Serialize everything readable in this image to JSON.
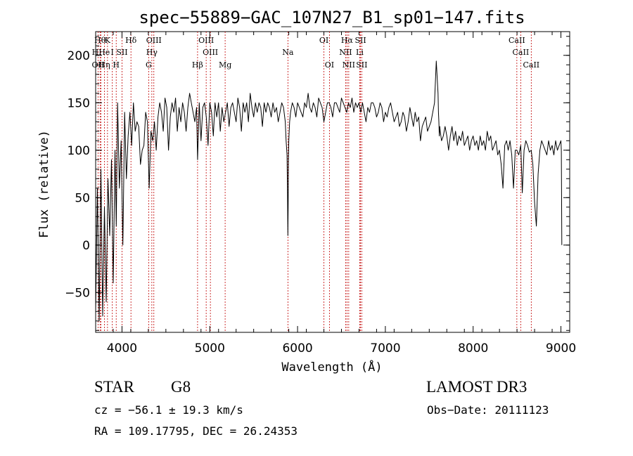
{
  "chart_data": {
    "type": "line",
    "title": "spec−55889−GAC_107N27_B1_sp01−147.fits",
    "xlabel": "Wavelength (Å)",
    "ylabel": "Flux (relative)",
    "xlim": [
      3700,
      9100
    ],
    "ylim": [
      -92,
      225
    ],
    "x_ticks": [
      {
        "v": 4000,
        "label": "4000"
      },
      {
        "v": 5000,
        "label": "5000"
      },
      {
        "v": 6000,
        "label": "6000"
      },
      {
        "v": 7000,
        "label": "7000"
      },
      {
        "v": 8000,
        "label": "8000"
      },
      {
        "v": 9000,
        "label": "9000"
      }
    ],
    "y_ticks": [
      {
        "v": -50,
        "label": "−50"
      },
      {
        "v": 0,
        "label": "0"
      },
      {
        "v": 50,
        "label": "50"
      },
      {
        "v": 100,
        "label": "100"
      },
      {
        "v": 150,
        "label": "150"
      },
      {
        "v": 200,
        "label": "200"
      }
    ],
    "series": [
      {
        "name": "flux",
        "x": [
          3700,
          3720,
          3740,
          3760,
          3780,
          3800,
          3820,
          3840,
          3860,
          3880,
          3900,
          3920,
          3935,
          3950,
          3970,
          3990,
          4010,
          4030,
          4050,
          4070,
          4090,
          4110,
          4130,
          4150,
          4170,
          4190,
          4210,
          4230,
          4250,
          4270,
          4290,
          4310,
          4330,
          4350,
          4370,
          4390,
          4410,
          4430,
          4450,
          4470,
          4490,
          4510,
          4530,
          4550,
          4570,
          4590,
          4610,
          4630,
          4650,
          4670,
          4690,
          4710,
          4730,
          4750,
          4770,
          4790,
          4810,
          4830,
          4850,
          4861,
          4880,
          4900,
          4920,
          4940,
          4960,
          4980,
          5000,
          5020,
          5040,
          5060,
          5080,
          5100,
          5120,
          5140,
          5160,
          5180,
          5200,
          5220,
          5240,
          5260,
          5280,
          5300,
          5320,
          5340,
          5360,
          5380,
          5400,
          5420,
          5440,
          5460,
          5480,
          5500,
          5520,
          5540,
          5560,
          5580,
          5600,
          5620,
          5640,
          5660,
          5680,
          5700,
          5720,
          5740,
          5760,
          5780,
          5800,
          5820,
          5840,
          5860,
          5870,
          5880,
          5885,
          5890,
          5893,
          5896,
          5900,
          5910,
          5920,
          5940,
          5960,
          5980,
          6000,
          6020,
          6040,
          6060,
          6080,
          6100,
          6120,
          6140,
          6160,
          6180,
          6200,
          6220,
          6240,
          6260,
          6280,
          6300,
          6320,
          6340,
          6360,
          6380,
          6400,
          6420,
          6440,
          6460,
          6480,
          6500,
          6520,
          6540,
          6560,
          6580,
          6600,
          6620,
          6640,
          6660,
          6680,
          6700,
          6720,
          6740,
          6760,
          6780,
          6800,
          6820,
          6840,
          6860,
          6880,
          6900,
          6920,
          6940,
          6960,
          6980,
          7000,
          7020,
          7040,
          7060,
          7080,
          7100,
          7120,
          7140,
          7160,
          7180,
          7200,
          7220,
          7240,
          7260,
          7280,
          7300,
          7320,
          7340,
          7360,
          7380,
          7400,
          7420,
          7440,
          7460,
          7480,
          7500,
          7520,
          7540,
          7560,
          7580,
          7600,
          7605,
          7610,
          7615,
          7620,
          7625,
          7640,
          7660,
          7680,
          7700,
          7720,
          7740,
          7760,
          7780,
          7800,
          7820,
          7840,
          7860,
          7880,
          7900,
          7920,
          7940,
          7960,
          7980,
          8000,
          8020,
          8040,
          8060,
          8080,
          8100,
          8120,
          8140,
          8160,
          8180,
          8200,
          8220,
          8240,
          8260,
          8280,
          8300,
          8320,
          8340,
          8360,
          8380,
          8400,
          8420,
          8440,
          8460,
          8480,
          8498,
          8520,
          8542,
          8560,
          8580,
          8600,
          8620,
          8640,
          8662,
          8680,
          8700,
          8720,
          8740,
          8760,
          8780,
          8800,
          8820,
          8840,
          8860,
          8880,
          8900,
          8920,
          8940,
          8960,
          8980,
          9000,
          9005,
          9010
        ],
        "y": [
          -70,
          60,
          -80,
          80,
          -75,
          40,
          -60,
          70,
          10,
          90,
          -40,
          100,
          20,
          150,
          60,
          110,
          0,
          140,
          70,
          115,
          140,
          105,
          150,
          120,
          130,
          125,
          85,
          100,
          105,
          140,
          130,
          60,
          120,
          110,
          130,
          100,
          135,
          150,
          140,
          120,
          155,
          145,
          100,
          135,
          150,
          140,
          155,
          120,
          145,
          130,
          150,
          140,
          120,
          145,
          160,
          150,
          140,
          130,
          145,
          90,
          150,
          110,
          145,
          150,
          135,
          105,
          150,
          140,
          115,
          150,
          135,
          150,
          120,
          145,
          130,
          140,
          150,
          125,
          145,
          150,
          140,
          130,
          155,
          145,
          120,
          150,
          140,
          150,
          130,
          160,
          145,
          135,
          150,
          140,
          150,
          145,
          125,
          150,
          140,
          150,
          145,
          135,
          150,
          140,
          145,
          130,
          140,
          150,
          145,
          130,
          110,
          95,
          60,
          10,
          40,
          90,
          110,
          130,
          140,
          150,
          145,
          135,
          150,
          145,
          140,
          135,
          150,
          145,
          160,
          145,
          140,
          150,
          145,
          135,
          155,
          150,
          145,
          130,
          140,
          150,
          150,
          145,
          135,
          150,
          150,
          145,
          140,
          155,
          150,
          145,
          140,
          150,
          145,
          155,
          140,
          150,
          145,
          150,
          140,
          150,
          140,
          130,
          145,
          140,
          150,
          150,
          145,
          135,
          140,
          150,
          145,
          130,
          140,
          135,
          145,
          150,
          140,
          130,
          135,
          140,
          125,
          130,
          140,
          135,
          120,
          130,
          145,
          135,
          125,
          140,
          130,
          135,
          110,
          125,
          130,
          135,
          120,
          125,
          130,
          140,
          150,
          194,
          160,
          140,
          130,
          115,
          125,
          120,
          110,
          115,
          125,
          115,
          100,
          115,
          125,
          110,
          120,
          105,
          115,
          110,
          120,
          105,
          110,
          115,
          100,
          110,
          115,
          105,
          110,
          100,
          115,
          105,
          110,
          100,
          120,
          110,
          115,
          100,
          105,
          110,
          95,
          100,
          85,
          60,
          105,
          110,
          100,
          110,
          95,
          60,
          100,
          100,
          95,
          105,
          55,
          100,
          110,
          105,
          98,
          100,
          85,
          45,
          20,
          75,
          100,
          110,
          105,
          100,
          95,
          110,
          100,
          105,
          95,
          110,
          100,
          105,
          110,
          100,
          0
        ]
      }
    ],
    "line_groups": [
      {
        "row": 1,
        "items": [
          {
            "v": 3750,
            "label": "Hθ"
          },
          {
            "v": 3835,
            "label": "K"
          },
          {
            "v": 4102,
            "label": "Hδ"
          },
          {
            "v": 4363,
            "label": "OIII"
          },
          {
            "v": 4959,
            "label": "OIII"
          },
          {
            "v": 6300,
            "label": "OI"
          },
          {
            "v": 6563,
            "label": "Hα"
          },
          {
            "v": 6717,
            "label": "SII"
          },
          {
            "v": 8498,
            "label": "CaII"
          }
        ]
      },
      {
        "row": 2,
        "items": [
          {
            "v": 3760,
            "label": "HHe"
          },
          {
            "v": 3890,
            "label": "I"
          },
          {
            "v": 4000,
            "label": "SII"
          },
          {
            "v": 4340,
            "label": "Hγ"
          },
          {
            "v": 5007,
            "label": "OIII"
          },
          {
            "v": 5890,
            "label": "Na"
          },
          {
            "v": 6548,
            "label": "NII"
          },
          {
            "v": 6708,
            "label": "Li"
          },
          {
            "v": 8542,
            "label": "CaII"
          }
        ]
      },
      {
        "row": 3,
        "items": [
          {
            "v": 3727,
            "label": "OII"
          },
          {
            "v": 3800,
            "label": "Hη"
          },
          {
            "v": 3934,
            "label": "H"
          },
          {
            "v": 4304,
            "label": "G"
          },
          {
            "v": 4861,
            "label": "Hβ"
          },
          {
            "v": 5175,
            "label": "Mg"
          },
          {
            "v": 6363,
            "label": "OI"
          },
          {
            "v": 6583,
            "label": "NII"
          },
          {
            "v": 6731,
            "label": "SII"
          },
          {
            "v": 8662,
            "label": "CaII"
          }
        ]
      }
    ]
  },
  "info": {
    "object_type": "STAR",
    "subclass": "G8",
    "survey": "LAMOST DR3",
    "redshift": "cz = −56.1 ± 19.3 km/s",
    "obs_date": "Obs−Date: 20111123",
    "coords": "RA = 109.17795, DEC =  26.24353"
  }
}
